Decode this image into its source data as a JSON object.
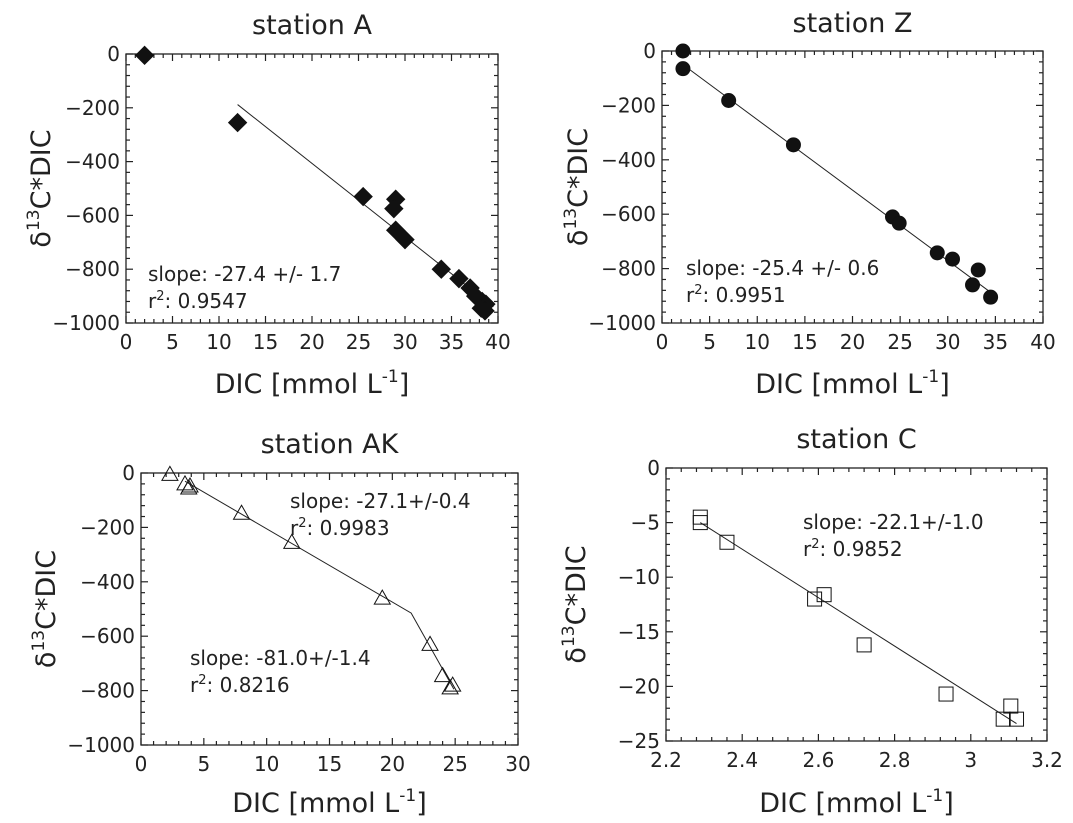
{
  "chart_data": [
    {
      "type": "scatter",
      "title": "station A",
      "xlabel": "DIC [mmol L-1]",
      "xlabel_main": "DIC [mmol L",
      "xlabel_sup": "-1",
      "xlabel_end": "]",
      "ylabel": "δ13C*DIC",
      "xlim": [
        0,
        40
      ],
      "ylim": [
        -1000,
        0
      ],
      "xticks": [
        0,
        5,
        10,
        15,
        20,
        25,
        30,
        35,
        40
      ],
      "yticks": [
        0,
        -200,
        -400,
        -600,
        -800,
        -1000
      ],
      "marker": "filled-diamond",
      "points": [
        {
          "x": 2.0,
          "y": -5
        },
        {
          "x": 12.0,
          "y": -255
        },
        {
          "x": 25.5,
          "y": -530
        },
        {
          "x": 29.0,
          "y": -540
        },
        {
          "x": 28.8,
          "y": -575
        },
        {
          "x": 29.0,
          "y": -655
        },
        {
          "x": 30.0,
          "y": -690
        },
        {
          "x": 33.9,
          "y": -800
        },
        {
          "x": 35.8,
          "y": -835
        },
        {
          "x": 37.0,
          "y": -870
        },
        {
          "x": 37.6,
          "y": -900
        },
        {
          "x": 38.3,
          "y": -920
        },
        {
          "x": 38.7,
          "y": -930
        },
        {
          "x": 38.2,
          "y": -945
        },
        {
          "x": 38.6,
          "y": -955
        }
      ],
      "fit_lines": [
        {
          "x": [
            12.0,
            39.5
          ],
          "y": [
            -188,
            -940
          ]
        }
      ],
      "annotations": [
        {
          "slope": "slope: -27.4 +/- 1.7",
          "r2_prefix": "r",
          "r2_sup": "2",
          "r2_value": ": 0.9547"
        }
      ]
    },
    {
      "type": "scatter",
      "title": "station Z",
      "xlabel": "DIC [mmol L-1]",
      "xlabel_main": "DIC [mmol L",
      "xlabel_sup": "-1",
      "xlabel_end": "]",
      "ylabel": "δ13C*DIC",
      "xlim": [
        0,
        40
      ],
      "ylim": [
        -1000,
        0
      ],
      "xticks": [
        0,
        5,
        10,
        15,
        20,
        25,
        30,
        35,
        40
      ],
      "yticks": [
        0,
        -200,
        -400,
        -600,
        -800,
        -1000
      ],
      "marker": "filled-circle",
      "points": [
        {
          "x": 2.2,
          "y": 0
        },
        {
          "x": 2.2,
          "y": -65
        },
        {
          "x": 7.0,
          "y": -182
        },
        {
          "x": 13.8,
          "y": -345
        },
        {
          "x": 24.2,
          "y": -610
        },
        {
          "x": 24.9,
          "y": -633
        },
        {
          "x": 28.9,
          "y": -742
        },
        {
          "x": 30.5,
          "y": -765
        },
        {
          "x": 32.6,
          "y": -860
        },
        {
          "x": 33.2,
          "y": -805
        },
        {
          "x": 34.5,
          "y": -905
        }
      ],
      "fit_lines": [
        {
          "x": [
            2.2,
            34.8
          ],
          "y": [
            -50,
            -895
          ]
        }
      ],
      "annotations": [
        {
          "slope": "slope: -25.4 +/- 0.6",
          "r2_prefix": "r",
          "r2_sup": "2",
          "r2_value": ": 0.9951"
        }
      ]
    },
    {
      "type": "scatter",
      "title": "station AK",
      "xlabel": "DIC [mmol L-1]",
      "xlabel_main": "DIC [mmol L",
      "xlabel_sup": "-1",
      "xlabel_end": "]",
      "ylabel": "δ13C*DIC",
      "xlim": [
        0,
        30
      ],
      "ylim": [
        -1000,
        0
      ],
      "xticks": [
        0,
        5,
        10,
        15,
        20,
        25,
        30
      ],
      "yticks": [
        0,
        -200,
        -400,
        -600,
        -800,
        -1000
      ],
      "marker": "open-triangle",
      "points": [
        {
          "x": 2.3,
          "y": -5
        },
        {
          "x": 3.5,
          "y": -40
        },
        {
          "x": 3.8,
          "y": -55
        },
        {
          "x": 3.9,
          "y": -48
        },
        {
          "x": 8.0,
          "y": -148
        },
        {
          "x": 12.0,
          "y": -255
        },
        {
          "x": 19.2,
          "y": -460
        },
        {
          "x": 23.0,
          "y": -630
        },
        {
          "x": 24.0,
          "y": -745
        },
        {
          "x": 24.6,
          "y": -790
        },
        {
          "x": 24.8,
          "y": -780
        }
      ],
      "fit_lines": [
        {
          "x": [
            3.5,
            21.5,
            24.9
          ],
          "y": [
            -30,
            -515,
            -795
          ]
        }
      ],
      "annotations": [
        {
          "slope": "slope: -27.1+/-0.4",
          "r2_prefix": "r",
          "r2_sup": "2",
          "r2_value": ": 0.9983"
        },
        {
          "slope": "slope: -81.0+/-1.4",
          "r2_prefix": "r",
          "r2_sup": "2",
          "r2_value": ": 0.8216"
        }
      ]
    },
    {
      "type": "scatter",
      "title": "station C",
      "xlabel": "DIC [mmol L-1]",
      "xlabel_main": "DIC [mmol L",
      "xlabel_sup": "-1",
      "xlabel_end": "]",
      "ylabel": "δ13C*DIC",
      "xlim": [
        2.2,
        3.2
      ],
      "ylim": [
        -25,
        0
      ],
      "xticks": [
        2.2,
        2.4,
        2.6,
        2.8,
        3,
        3.2
      ],
      "yticks": [
        0,
        -5,
        -10,
        -15,
        -20,
        -25
      ],
      "marker": "open-square",
      "points": [
        {
          "x": 2.29,
          "y": -4.5
        },
        {
          "x": 2.29,
          "y": -5.0
        },
        {
          "x": 2.36,
          "y": -6.8
        },
        {
          "x": 2.59,
          "y": -12.0
        },
        {
          "x": 2.615,
          "y": -11.6
        },
        {
          "x": 2.72,
          "y": -16.2
        },
        {
          "x": 2.935,
          "y": -20.7
        },
        {
          "x": 3.085,
          "y": -23.0
        },
        {
          "x": 3.105,
          "y": -21.8
        },
        {
          "x": 3.12,
          "y": -23.0
        }
      ],
      "fit_lines": [
        {
          "x": [
            2.29,
            3.12
          ],
          "y": [
            -5.0,
            -23.4
          ]
        }
      ],
      "annotations": [
        {
          "slope": "slope: -22.1+/-1.0",
          "r2_prefix": "r",
          "r2_sup": "2",
          "r2_value": ": 0.9852"
        }
      ]
    }
  ]
}
